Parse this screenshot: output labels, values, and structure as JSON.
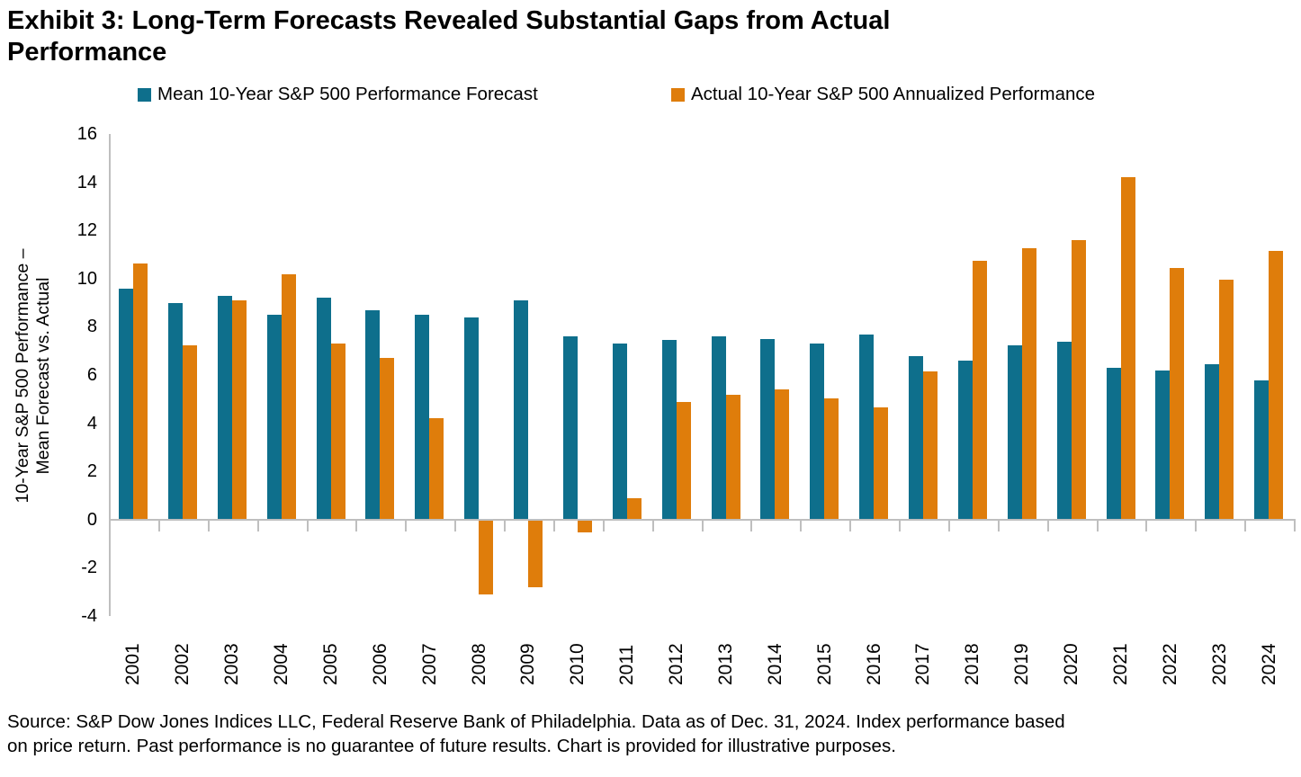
{
  "title": {
    "line1": "Exhibit 3: Long-Term Forecasts Revealed Substantial Gaps from Actual",
    "line2": "Performance"
  },
  "legend": [
    {
      "label": "Mean 10-Year S&P 500 Performance Forecast",
      "color": "#0E6F8C"
    },
    {
      "label": "Actual 10-Year S&P 500 Annualized Performance",
      "color": "#DF7D0B"
    }
  ],
  "source": {
    "line1": "Source: S&P Dow Jones Indices LLC, Federal Reserve Bank of Philadelphia. Data as of Dec. 31, 2024. Index performance based",
    "line2": "on price return. Past performance is no guarantee of future results. Chart is provided for illustrative purposes."
  },
  "chart_data": {
    "type": "bar",
    "title": "Exhibit 3: Long-Term Forecasts Revealed Substantial Gaps from Actual Performance",
    "categories": [
      "2001",
      "2002",
      "2003",
      "2004",
      "2005",
      "2006",
      "2007",
      "2008",
      "2009",
      "2010",
      "2011",
      "2012",
      "2013",
      "2014",
      "2015",
      "2016",
      "2017",
      "2018",
      "2019",
      "2020",
      "2021",
      "2022",
      "2023",
      "2024"
    ],
    "series": [
      {
        "name": "Mean 10-Year S&P 500 Performance Forecast",
        "color": "#0E6F8C",
        "values": [
          9.6,
          9.0,
          9.3,
          8.5,
          9.2,
          8.7,
          8.5,
          8.4,
          9.1,
          7.6,
          7.3,
          7.45,
          7.6,
          7.5,
          7.3,
          7.7,
          6.8,
          6.6,
          7.25,
          7.4,
          6.3,
          6.2,
          6.45,
          5.8
        ]
      },
      {
        "name": "Actual 10-Year S&P 500 Annualized Performance",
        "color": "#DF7D0B",
        "values": [
          10.65,
          7.25,
          9.1,
          10.2,
          7.3,
          6.7,
          4.2,
          -3.05,
          -2.75,
          -0.5,
          0.9,
          4.9,
          5.2,
          5.4,
          5.05,
          4.65,
          6.15,
          10.75,
          11.25,
          11.6,
          14.2,
          10.45,
          9.95,
          11.15
        ]
      }
    ],
    "xlabel": "",
    "ylabel_line1": "10-Year S&P 500 Performance –",
    "ylabel_line2": "Mean Forecast vs. Actual",
    "ylim": [
      -4,
      16
    ],
    "y_ticks": [
      16,
      14,
      12,
      10,
      8,
      6,
      4,
      2,
      0,
      -2,
      -4
    ],
    "grid": false,
    "legend_position": "top"
  }
}
